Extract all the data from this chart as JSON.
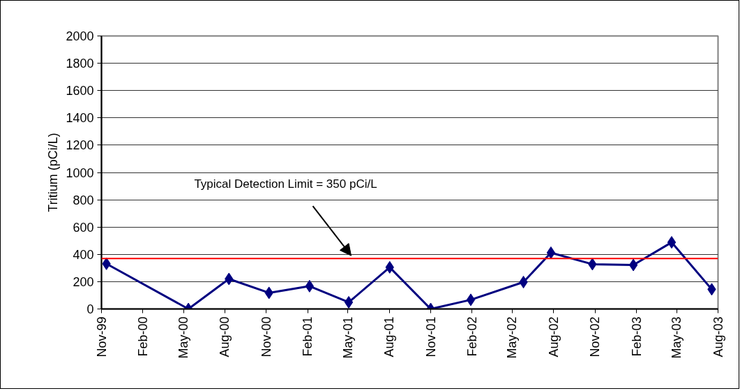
{
  "chart_data": {
    "type": "line",
    "ylabel": "Tritium (pCi/L)",
    "x": [
      "1999-11-12",
      "2000-05-12",
      "2000-08-10",
      "2000-11-07",
      "2001-02-05",
      "2001-05-03",
      "2001-08-02",
      "2001-11-01",
      "2002-01-29",
      "2002-05-26",
      "2002-07-26",
      "2002-10-26",
      "2003-01-25",
      "2003-04-20",
      "2003-07-18"
    ],
    "series": [
      {
        "color": "#000080",
        "values": [
          331,
          0,
          220,
          118,
          167,
          49,
          305,
          0,
          67,
          197,
          412,
          328,
          322,
          488,
          144
        ]
      }
    ],
    "marker": "diamond",
    "line_style": "solid",
    "xlim": [
      "1999-11-01",
      "2003-08-01"
    ],
    "xticks": [
      {
        "value": "1999-11-01",
        "label": "Nov-99"
      },
      {
        "value": "2000-02-01",
        "label": "Feb-00"
      },
      {
        "value": "2000-05-01",
        "label": "May-00"
      },
      {
        "value": "2000-08-01",
        "label": "Aug-00"
      },
      {
        "value": "2000-11-01",
        "label": "Nov-00"
      },
      {
        "value": "2001-02-01",
        "label": "Feb-01"
      },
      {
        "value": "2001-05-01",
        "label": "May-01"
      },
      {
        "value": "2001-08-01",
        "label": "Aug-01"
      },
      {
        "value": "2001-11-01",
        "label": "Nov-01"
      },
      {
        "value": "2002-02-01",
        "label": "Feb-02"
      },
      {
        "value": "2002-05-01",
        "label": "May-02"
      },
      {
        "value": "2002-08-01",
        "label": "Aug-02"
      },
      {
        "value": "2002-11-01",
        "label": "Nov-02"
      },
      {
        "value": "2003-02-01",
        "label": "Feb-03"
      },
      {
        "value": "2003-05-01",
        "label": "May-03"
      },
      {
        "value": "2003-08-01",
        "label": "Aug-03"
      }
    ],
    "ylim": [
      0,
      2000
    ],
    "yticks": [
      0,
      200,
      400,
      600,
      800,
      1000,
      1200,
      1400,
      1600,
      1800,
      2000
    ],
    "grid": "y",
    "ref_lines": [
      {
        "axis": "y",
        "value": 370,
        "color": "#ff0000"
      }
    ],
    "annotations": [
      "Typical Detection Limit = 350 pCi/L"
    ]
  }
}
